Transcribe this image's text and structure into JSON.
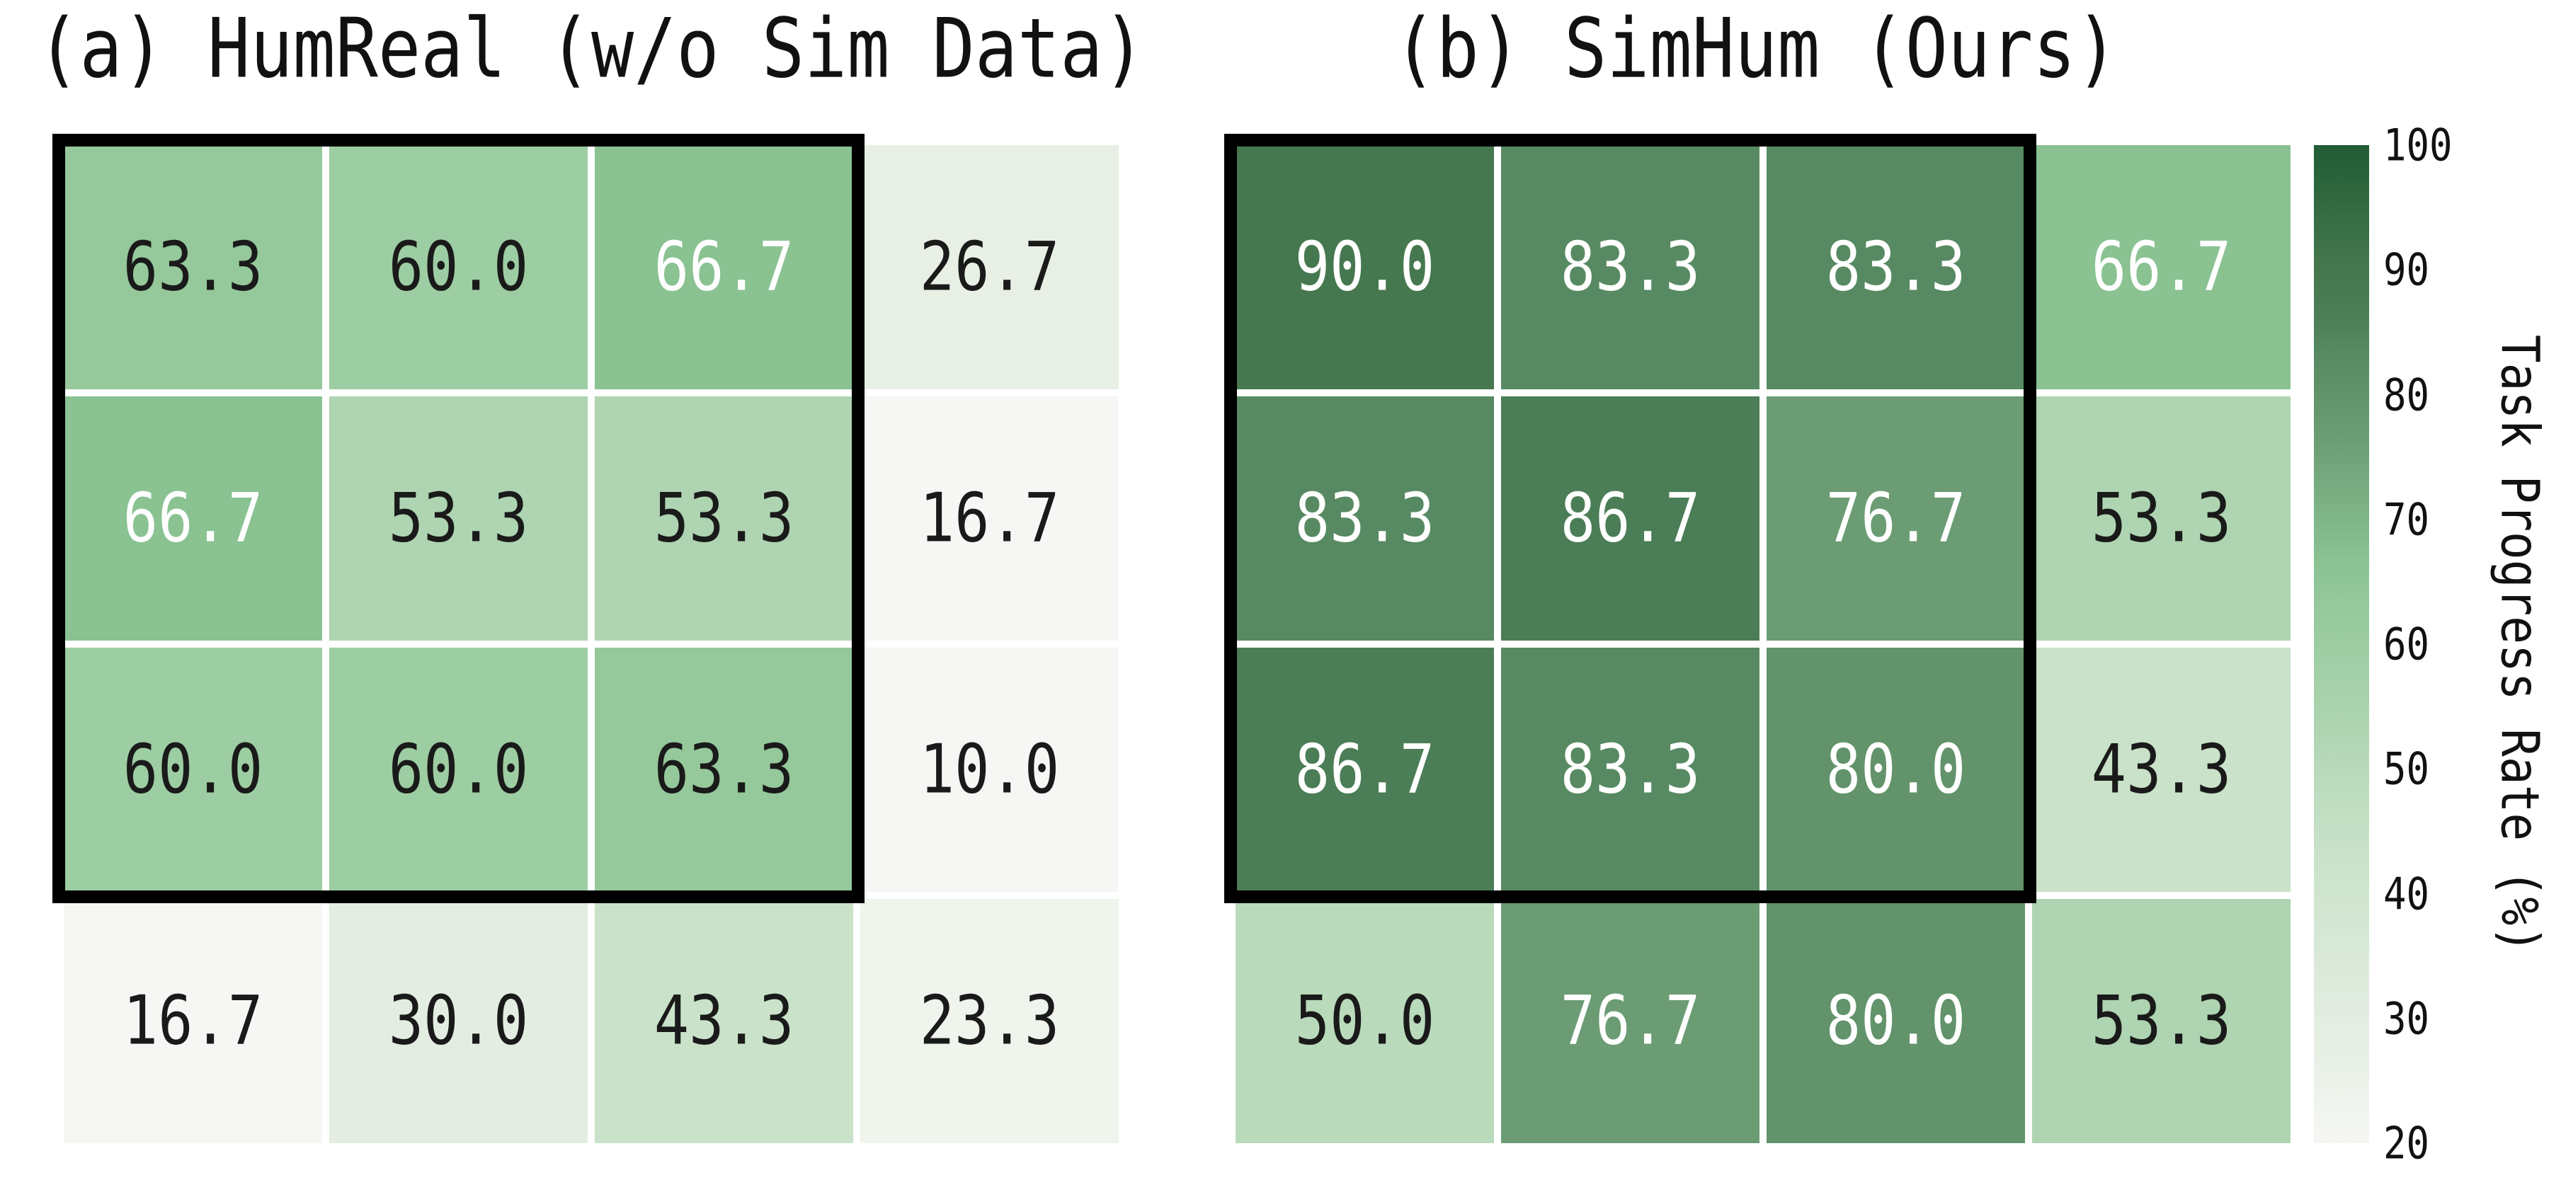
{
  "chart_data": [
    {
      "type": "heatmap",
      "title": "(a) HumReal (w/o Sim Data)",
      "grid_shape": [
        4,
        4
      ],
      "values": [
        [
          63.3,
          60.0,
          66.7,
          26.7
        ],
        [
          66.7,
          53.3,
          53.3,
          16.7
        ],
        [
          60.0,
          60.0,
          63.3,
          10.0
        ],
        [
          16.7,
          30.0,
          43.3,
          23.3
        ]
      ],
      "annotation_format": "one-decimal",
      "highlight": "black box outlining top-left 3x3 cells"
    },
    {
      "type": "heatmap",
      "title": "(b) SimHum (Ours)",
      "grid_shape": [
        4,
        4
      ],
      "values": [
        [
          90.0,
          83.3,
          83.3,
          66.7
        ],
        [
          83.3,
          86.7,
          76.7,
          53.3
        ],
        [
          86.7,
          83.3,
          80.0,
          43.3
        ],
        [
          50.0,
          76.7,
          80.0,
          53.3
        ]
      ],
      "annotation_format": "one-decimal",
      "highlight": "black box outlining top-left 3x3 cells"
    }
  ],
  "colorbar": {
    "label": "Task Progress Rate (%)",
    "ticks": [
      "100",
      "90",
      "80",
      "70",
      "60",
      "50",
      "40",
      "30",
      "20"
    ],
    "vmin": 20,
    "vmax": 100,
    "orientation": "vertical",
    "position": "right"
  },
  "colors": {
    "background": "#ffffff",
    "grid_line": "#ffffff",
    "highlight_box": "#000000",
    "cell_text_dark": "#1a1a1a",
    "cell_text_light": "#ffffff",
    "white_text_threshold": 66.0,
    "colormap_anchors": [
      [
        20,
        "#f6f7f4"
      ],
      [
        26.7,
        "#e8f0e6"
      ],
      [
        30,
        "#e3ede1"
      ],
      [
        43.3,
        "#c9e2c9"
      ],
      [
        50,
        "#b9dabb"
      ],
      [
        53.3,
        "#aed4b1"
      ],
      [
        60,
        "#9dcda2"
      ],
      [
        63.3,
        "#95c89b"
      ],
      [
        66.7,
        "#8ac292"
      ],
      [
        76.7,
        "#6b9c74"
      ],
      [
        80,
        "#62936b"
      ],
      [
        83.3,
        "#578a62"
      ],
      [
        86.7,
        "#4b7d56"
      ],
      [
        90,
        "#46784f"
      ],
      [
        100,
        "#215c34"
      ]
    ]
  }
}
